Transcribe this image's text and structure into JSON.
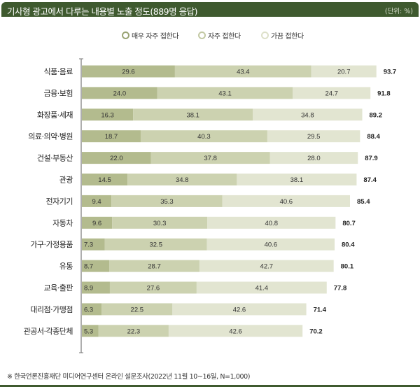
{
  "header": {
    "title": "기사형 광고에서 다루는 내용별 노출 정도(889명 응답)",
    "unit": "(단위: %)"
  },
  "footnote": "※ 한국언론진흥재단 미디어연구센터 온라인 설문조사(2022년 11월 10~16일, N=1,000)",
  "chart_data": {
    "type": "bar",
    "stacked": true,
    "orientation": "horizontal",
    "title": "기사형 광고에서 다루는 내용별 노출 정도(889명 응답)",
    "unit": "%",
    "legend_position": "top-center",
    "categories": [
      "식품·음료",
      "금융·보험",
      "화장품·세재",
      "의료·의약·병원",
      "건설·부동산",
      "관광",
      "전자기기",
      "자동차",
      "가구·가정용품",
      "유통",
      "교육·출판",
      "대리점·가맹점",
      "관공서·각종단체"
    ],
    "series": [
      {
        "name": "매우 자주 접한다",
        "color": "#b3bb8e",
        "values": [
          29.6,
          24.0,
          16.3,
          18.7,
          22.0,
          14.5,
          9.4,
          9.6,
          7.3,
          8.7,
          8.9,
          6.3,
          5.3
        ]
      },
      {
        "name": "자주 접한다",
        "color": "#ccd2b0",
        "values": [
          43.4,
          43.1,
          38.1,
          40.3,
          37.8,
          34.8,
          35.3,
          30.3,
          32.5,
          28.7,
          27.6,
          22.5,
          22.3
        ]
      },
      {
        "name": "가끔 접한다",
        "color": "#e2e5d1",
        "values": [
          20.7,
          24.7,
          34.8,
          29.5,
          28.0,
          38.1,
          40.6,
          40.8,
          40.6,
          42.7,
          41.4,
          42.6,
          42.6
        ]
      }
    ],
    "totals": [
      "93.7",
      "91.8",
      "89.2",
      "88.4",
      "87.9",
      "87.4",
      "85.4",
      "80.7",
      "80.4",
      "80.1",
      "77.8",
      "71.4",
      "70.2"
    ],
    "xlim": [
      0,
      100
    ]
  }
}
